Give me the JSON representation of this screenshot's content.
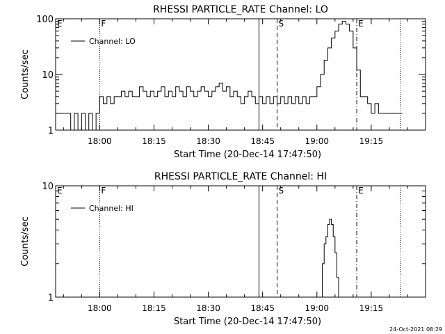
{
  "footer_timestamp": "24-Oct-2021 08:29",
  "chart_data": [
    {
      "type": "line",
      "title": "RHESSI PARTICLE_RATE Channel: LO",
      "xlabel": "Start Time (20-Dec-14 17:47:50)",
      "ylabel": "Counts/sec",
      "yscale": "log",
      "ylim": [
        1,
        100
      ],
      "xlim": [
        "17:47:50",
        "19:30:00"
      ],
      "x_ticks": [
        "18:00",
        "18:15",
        "18:30",
        "18:45",
        "19:00",
        "19:15"
      ],
      "y_ticks": [
        "1",
        "10",
        "100"
      ],
      "legend": {
        "label": "Channel: LO",
        "position": "top-left"
      },
      "markers": [
        {
          "label": "E",
          "time": "17:47:50",
          "style": "none"
        },
        {
          "label": "F",
          "time": "18:00:00",
          "style": "dotted"
        },
        {
          "label": "",
          "time": "18:44:00",
          "style": "solid"
        },
        {
          "label": "S",
          "time": "18:49:00",
          "style": "dashed"
        },
        {
          "label": "E",
          "time": "19:11:00",
          "style": "dashdot"
        },
        {
          "label": "",
          "time": "19:23:00",
          "style": "dotted"
        }
      ],
      "series": [
        {
          "name": "Channel: LO",
          "x": [
            "17:48:00",
            "17:51:00",
            "17:52:00",
            "17:53:00",
            "17:54:00",
            "17:55:00",
            "17:56:00",
            "17:57:00",
            "17:58:00",
            "17:59:00",
            "18:00:00",
            "18:01:00",
            "18:02:00",
            "18:03:00",
            "18:04:00",
            "18:05:00",
            "18:06:00",
            "18:07:00",
            "18:08:00",
            "18:09:00",
            "18:10:00",
            "18:11:00",
            "18:12:00",
            "18:13:00",
            "18:14:00",
            "18:15:00",
            "18:16:00",
            "18:17:00",
            "18:18:00",
            "18:19:00",
            "18:20:00",
            "18:21:00",
            "18:22:00",
            "18:23:00",
            "18:24:00",
            "18:25:00",
            "18:26:00",
            "18:27:00",
            "18:28:00",
            "18:29:00",
            "18:30:00",
            "18:31:00",
            "18:32:00",
            "18:33:00",
            "18:34:00",
            "18:35:00",
            "18:36:00",
            "18:37:00",
            "18:38:00",
            "18:39:00",
            "18:40:00",
            "18:41:00",
            "18:42:00",
            "18:43:00",
            "18:44:00",
            "18:45:00",
            "18:46:00",
            "18:47:00",
            "18:48:00",
            "18:49:00",
            "18:50:00",
            "18:51:00",
            "18:52:00",
            "18:53:00",
            "18:54:00",
            "18:55:00",
            "18:56:00",
            "18:57:00",
            "18:58:00",
            "18:59:00",
            "19:00:00",
            "19:01:00",
            "19:02:00",
            "19:03:00",
            "19:04:00",
            "19:05:00",
            "19:06:00",
            "19:07:00",
            "19:08:00",
            "19:09:00",
            "19:10:00",
            "19:11:00",
            "19:12:00",
            "19:13:00",
            "19:14:00",
            "19:15:00",
            "19:16:00",
            "19:17:00",
            "19:18:00",
            "19:19:00",
            "19:20:00",
            "19:21:00",
            "19:22:00",
            "19:23:00"
          ],
          "values": [
            2,
            2,
            1,
            2,
            1,
            2,
            1,
            2,
            1,
            2,
            4,
            3,
            4,
            3,
            4,
            4,
            5,
            4,
            5,
            4,
            4,
            6,
            5,
            4,
            5,
            4,
            5,
            6,
            4,
            5,
            4,
            6,
            5,
            4,
            6,
            5,
            4,
            5,
            6,
            5,
            4,
            5,
            6,
            7,
            5,
            6,
            4,
            5,
            4,
            3,
            4,
            5,
            4,
            3,
            4,
            3,
            4,
            3,
            4,
            3,
            4,
            3,
            4,
            3,
            4,
            3,
            4,
            3,
            4,
            4,
            6,
            10,
            18,
            30,
            45,
            60,
            80,
            90,
            80,
            60,
            30,
            12,
            4,
            4,
            3,
            2,
            3,
            2,
            2,
            2,
            2,
            2,
            2,
            2
          ]
        }
      ]
    },
    {
      "type": "line",
      "title": "RHESSI PARTICLE_RATE Channel: HI",
      "xlabel": "Start Time (20-Dec-14 17:47:50)",
      "ylabel": "Counts/sec",
      "yscale": "log",
      "ylim": [
        1,
        10
      ],
      "xlim": [
        "17:47:50",
        "19:30:00"
      ],
      "x_ticks": [
        "18:00",
        "18:15",
        "18:30",
        "18:45",
        "19:00",
        "19:15"
      ],
      "y_ticks": [
        "1",
        "10"
      ],
      "legend": {
        "label": "Channel: HI",
        "position": "top-left"
      },
      "markers": [
        {
          "label": "E",
          "time": "17:47:50",
          "style": "none"
        },
        {
          "label": "F",
          "time": "18:00:00",
          "style": "dotted"
        },
        {
          "label": "",
          "time": "18:44:00",
          "style": "solid"
        },
        {
          "label": "S",
          "time": "18:49:00",
          "style": "dashed"
        },
        {
          "label": "E",
          "time": "19:11:00",
          "style": "dashdot"
        },
        {
          "label": "",
          "time": "19:23:00",
          "style": "dotted"
        }
      ],
      "series": [
        {
          "name": "Channel: HI",
          "x": [
            "19:01:00",
            "19:01:30",
            "19:02:00",
            "19:02:30",
            "19:03:00",
            "19:03:30",
            "19:04:00",
            "19:04:30",
            "19:05:00",
            "19:05:30",
            "19:06:00"
          ],
          "values": [
            1,
            2,
            3,
            3.5,
            4.5,
            5,
            4.5,
            3.5,
            2.5,
            1.5,
            1
          ]
        }
      ]
    }
  ]
}
